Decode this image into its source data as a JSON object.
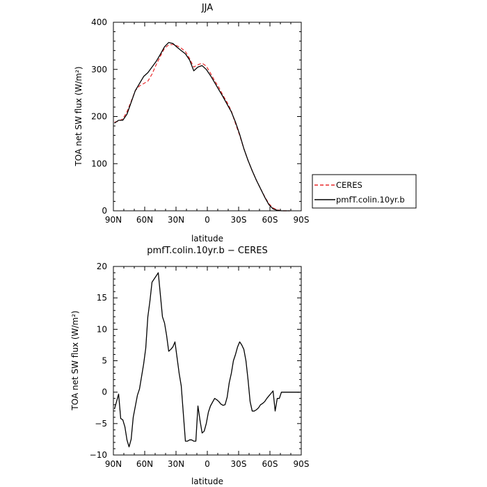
{
  "chart_data": [
    {
      "type": "line",
      "title": "JJA",
      "xlabel": "latitude",
      "ylabel": "TOA net SW flux (W/m²)",
      "xlim": [
        90,
        -90
      ],
      "ylim": [
        0,
        400
      ],
      "xtick_values": [
        90,
        60,
        30,
        0,
        -30,
        -60,
        -90
      ],
      "xtick_labels": [
        "90N",
        "60N",
        "30N",
        "0",
        "30S",
        "60S",
        "90S"
      ],
      "ytick_values": [
        0,
        100,
        200,
        300,
        400
      ],
      "ytick_labels": [
        "0",
        "100",
        "200",
        "300",
        "400"
      ],
      "grid": false,
      "legend_position": "right",
      "series": [
        {
          "name": "CERES",
          "color": "#e8282a",
          "style": "dashed",
          "x": [
            89,
            85,
            81,
            77,
            73,
            69,
            65,
            61,
            57,
            53,
            49,
            45,
            41,
            37,
            33,
            29,
            25,
            21,
            17,
            13,
            9,
            5,
            1,
            -3,
            -7,
            -11,
            -15,
            -19,
            -23,
            -27,
            -31,
            -35,
            -39,
            -43,
            -47,
            -51,
            -55,
            -59,
            -63,
            -67,
            -71,
            -75,
            -79
          ],
          "y": [
            188,
            190,
            195,
            210,
            232,
            255,
            265,
            270,
            275,
            290,
            310,
            328,
            345,
            352,
            353,
            350,
            345,
            338,
            323,
            305,
            310,
            313,
            307,
            292,
            276,
            262,
            245,
            230,
            212,
            185,
            160,
            132,
            107,
            85,
            65,
            47,
            30,
            15,
            6,
            2,
            0,
            0,
            0
          ]
        },
        {
          "name": "pmfT.colin.10yr.b",
          "color": "#000000",
          "style": "solid",
          "x": [
            89,
            85,
            81,
            77,
            73,
            69,
            65,
            61,
            57,
            53,
            49,
            45,
            41,
            37,
            33,
            29,
            25,
            21,
            17,
            13,
            9,
            5,
            1,
            -3,
            -7,
            -11,
            -15,
            -19,
            -23,
            -27,
            -31,
            -35,
            -39,
            -43,
            -47,
            -51,
            -55,
            -59,
            -63,
            -67,
            -71,
            -75,
            -79
          ],
          "y": [
            186,
            192,
            192,
            205,
            230,
            255,
            270,
            285,
            293,
            305,
            317,
            332,
            348,
            357,
            355,
            347,
            340,
            333,
            320,
            297,
            305,
            308,
            300,
            287,
            272,
            257,
            242,
            226,
            210,
            188,
            162,
            132,
            107,
            85,
            65,
            47,
            29,
            13,
            4,
            1,
            0,
            0,
            0
          ]
        }
      ]
    },
    {
      "type": "line",
      "title": "pmfT.colin.10yr.b − CERES",
      "xlabel": "latitude",
      "ylabel": "TOA net SW flux (W/m²)",
      "xlim": [
        90,
        -90
      ],
      "ylim": [
        -10,
        20
      ],
      "xtick_values": [
        90,
        60,
        30,
        0,
        -30,
        -60,
        -90
      ],
      "xtick_labels": [
        "90N",
        "60N",
        "30N",
        "0",
        "30S",
        "60S",
        "90S"
      ],
      "ytick_values": [
        -10,
        -5,
        0,
        5,
        10,
        15,
        20
      ],
      "ytick_labels": [
        "−10",
        "−5",
        "0",
        "5",
        "10",
        "15",
        "20"
      ],
      "grid": false,
      "series": [
        {
          "color": "#000000",
          "style": "solid",
          "x": [
            89,
            85,
            83,
            81,
            79,
            77,
            75,
            73,
            71,
            67,
            65,
            63,
            61,
            59,
            57,
            55,
            53,
            51,
            49,
            47,
            45,
            43,
            41,
            39,
            37,
            35,
            33,
            31,
            29,
            27,
            25,
            21,
            19,
            17,
            15,
            13,
            11,
            9,
            7,
            5,
            3,
            1,
            -1,
            -3,
            -7,
            -9,
            -11,
            -13,
            -15,
            -17,
            -19,
            -21,
            -23,
            -25,
            -27,
            -29,
            -31,
            -33,
            -35,
            -37,
            -39,
            -41,
            -43,
            -45,
            -47,
            -49,
            -51,
            -53,
            -55,
            -57,
            -59,
            -61,
            -63,
            -65,
            -67,
            -69,
            -71,
            -73,
            -75,
            -77,
            -79,
            -81,
            -83,
            -85,
            -87,
            -89
          ],
          "y": [
            -2.7,
            -0.3,
            -4.2,
            -4.4,
            -5.5,
            -7.6,
            -8.7,
            -7.5,
            -4.0,
            -0.5,
            0.5,
            2.5,
            4.5,
            7.0,
            12.0,
            14.5,
            17.5,
            18.0,
            18.5,
            19.0,
            15.5,
            12.0,
            11.0,
            9.0,
            6.5,
            6.8,
            7.2,
            8.0,
            5.5,
            3.0,
            1.0,
            -7.8,
            -7.8,
            -7.6,
            -7.6,
            -7.8,
            -7.8,
            -2.2,
            -4.5,
            -6.5,
            -6.2,
            -5.0,
            -3.2,
            -2.2,
            -1.0,
            -1.2,
            -1.5,
            -1.9,
            -2.1,
            -2.0,
            -0.8,
            1.5,
            3.0,
            5.0,
            6.0,
            7.2,
            8.0,
            7.5,
            6.8,
            5.0,
            2.0,
            -1.5,
            -3.0,
            -3.0,
            -2.8,
            -2.5,
            -2.0,
            -1.8,
            -1.5,
            -1.0,
            -0.6,
            -0.2,
            0.2,
            -3.0,
            -1.0,
            -1.0,
            0.0,
            0.0,
            0.0,
            0.0,
            0.0,
            0.0,
            0.0,
            0.0,
            0.0,
            0.0
          ]
        }
      ]
    }
  ]
}
